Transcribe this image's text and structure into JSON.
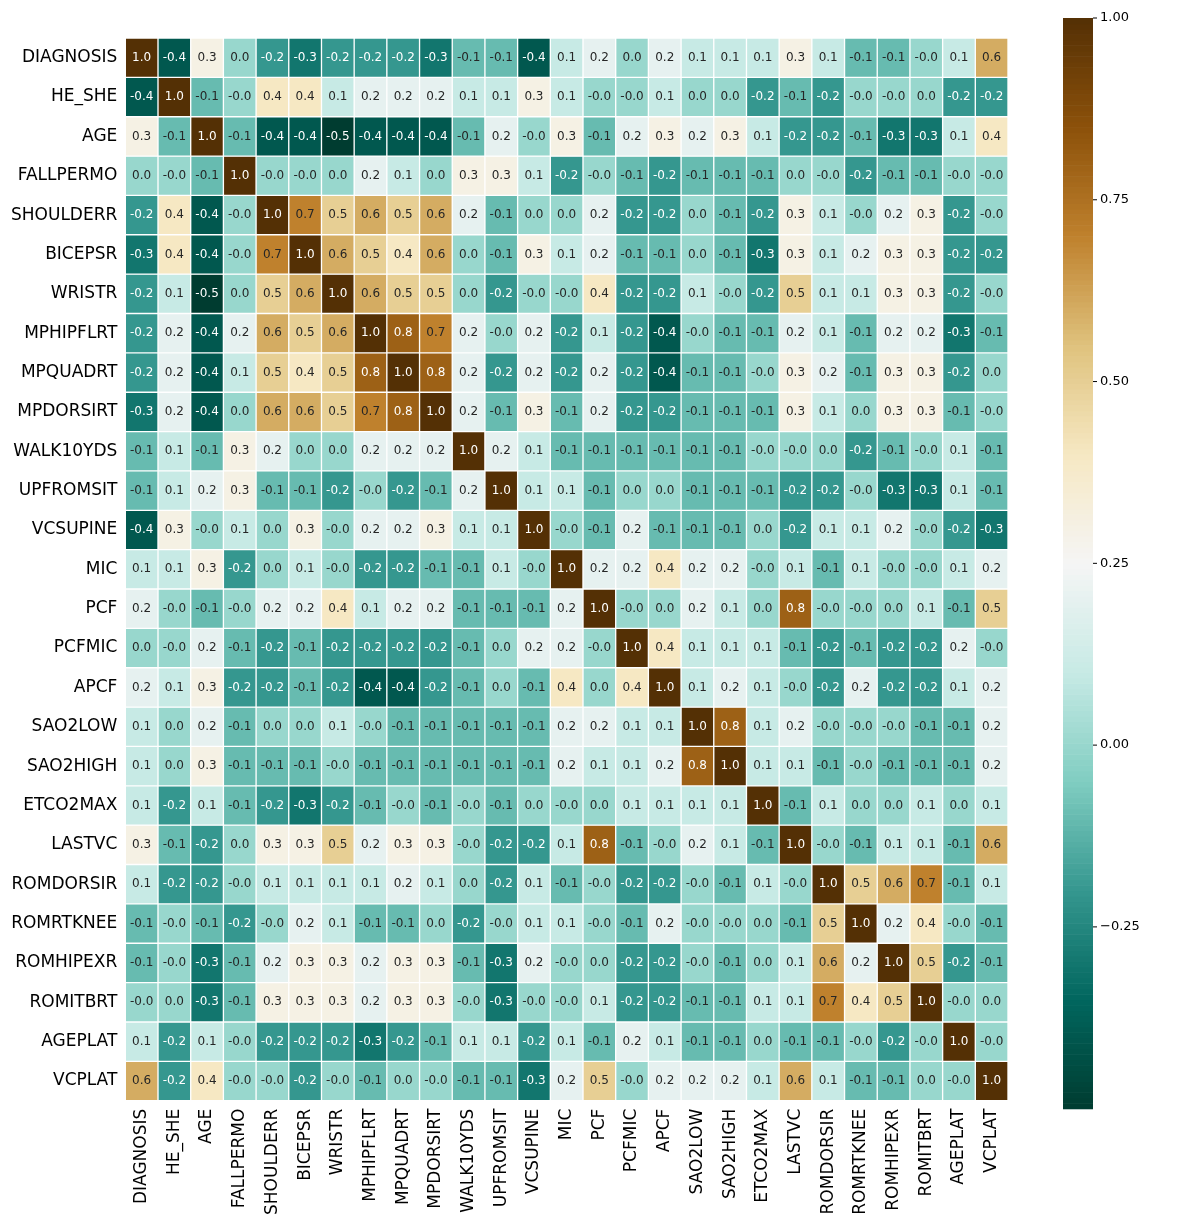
{
  "chart_data": {
    "type": "heatmap",
    "categories": [
      "DIAGNOSIS",
      "HE_SHE",
      "AGE",
      "FALLPERMO",
      "SHOULDERR",
      "BICEPSR",
      "WRISTR",
      "MPHIPFLRT",
      "MPQUADRT",
      "MPDORSIRT",
      "WALK10YDS",
      "UPFROMSIT",
      "VCSUPINE",
      "MIC",
      "PCF",
      "PCFMIC",
      "APCF",
      "SAO2LOW",
      "SAO2HIGH",
      "ETCO2MAX",
      "LASTVC",
      "ROMDORSIR",
      "ROMRTKNEE",
      "ROMHIPEXR",
      "ROMITBRT",
      "AGEPLAT",
      "VCPLAT"
    ],
    "y_categories": [
      "DIAGNOSIS",
      "HE_SHE",
      "AGE",
      "FALLPERMO",
      "SHOULDERR",
      "BICEPSR",
      "WRISTR",
      "MPHIPFLRT",
      "MPQUADRT",
      "MPDORSIRT",
      "WALK10YDS",
      "UPFROMSIT",
      "VCSUPINE",
      "MIC",
      "PCF",
      "PCFMIC",
      "APCF",
      "SAO2LOW",
      "SAO2HIGH",
      "ETCO2MAX",
      "LASTVC",
      "ROMDORSIR",
      "ROMRTKNEE",
      "ROMHIPEXR",
      "ROMITBRT",
      "AGEPLAT",
      "VCPLAT"
    ],
    "cells": [
      [
        1.0,
        -0.4,
        0.3,
        0.0,
        -0.2,
        -0.3,
        -0.2,
        -0.2,
        -0.2,
        -0.3,
        -0.1,
        -0.1,
        -0.4,
        0.1,
        0.2,
        0.0,
        0.2,
        0.1,
        0.1,
        0.1,
        0.3,
        0.1,
        -0.1,
        -0.1,
        -0.0,
        0.1,
        0.6
      ],
      [
        -0.4,
        1.0,
        -0.1,
        -0.0,
        0.4,
        0.4,
        0.1,
        0.2,
        0.2,
        0.2,
        0.1,
        0.1,
        0.3,
        0.1,
        -0.0,
        -0.0,
        0.1,
        0.0,
        0.0,
        -0.2,
        -0.1,
        -0.2,
        -0.0,
        -0.0,
        0.0,
        -0.2,
        -0.2
      ],
      [
        0.3,
        -0.1,
        1.0,
        -0.1,
        -0.4,
        -0.4,
        -0.5,
        -0.4,
        -0.4,
        -0.4,
        -0.1,
        0.2,
        -0.0,
        0.3,
        -0.1,
        0.2,
        0.3,
        0.2,
        0.3,
        0.1,
        -0.2,
        -0.2,
        -0.1,
        -0.3,
        -0.3,
        0.1,
        0.4
      ],
      [
        0.0,
        -0.0,
        -0.1,
        1.0,
        -0.0,
        -0.0,
        0.0,
        0.2,
        0.1,
        0.0,
        0.3,
        0.3,
        0.1,
        -0.2,
        -0.0,
        -0.1,
        -0.2,
        -0.1,
        -0.1,
        -0.1,
        0.0,
        -0.0,
        -0.2,
        -0.1,
        -0.1,
        -0.0,
        -0.0
      ],
      [
        -0.2,
        0.4,
        -0.4,
        -0.0,
        1.0,
        0.7,
        0.5,
        0.6,
        0.5,
        0.6,
        0.2,
        -0.1,
        0.0,
        0.0,
        0.2,
        -0.2,
        -0.2,
        0.0,
        -0.1,
        -0.2,
        0.3,
        0.1,
        -0.0,
        0.2,
        0.3,
        -0.2,
        -0.0
      ],
      [
        -0.3,
        0.4,
        -0.4,
        -0.0,
        0.7,
        1.0,
        0.6,
        0.5,
        0.4,
        0.6,
        0.0,
        -0.1,
        0.3,
        0.1,
        0.2,
        -0.1,
        -0.1,
        0.0,
        -0.1,
        -0.3,
        0.3,
        0.1,
        0.2,
        0.3,
        0.3,
        -0.2,
        -0.2
      ],
      [
        -0.2,
        0.1,
        -0.5,
        0.0,
        0.5,
        0.6,
        1.0,
        0.6,
        0.5,
        0.5,
        0.0,
        -0.2,
        -0.0,
        -0.0,
        0.4,
        -0.2,
        -0.2,
        0.1,
        -0.0,
        -0.2,
        0.5,
        0.1,
        0.1,
        0.3,
        0.3,
        -0.2,
        -0.0
      ],
      [
        -0.2,
        0.2,
        -0.4,
        0.2,
        0.6,
        0.5,
        0.6,
        1.0,
        0.8,
        0.7,
        0.2,
        -0.0,
        0.2,
        -0.2,
        0.1,
        -0.2,
        -0.4,
        -0.0,
        -0.1,
        -0.1,
        0.2,
        0.1,
        -0.1,
        0.2,
        0.2,
        -0.3,
        -0.1
      ],
      [
        -0.2,
        0.2,
        -0.4,
        0.1,
        0.5,
        0.4,
        0.5,
        0.8,
        1.0,
        0.8,
        0.2,
        -0.2,
        0.2,
        -0.2,
        0.2,
        -0.2,
        -0.4,
        -0.1,
        -0.1,
        -0.0,
        0.3,
        0.2,
        -0.1,
        0.3,
        0.3,
        -0.2,
        0.0
      ],
      [
        -0.3,
        0.2,
        -0.4,
        0.0,
        0.6,
        0.6,
        0.5,
        0.7,
        0.8,
        1.0,
        0.2,
        -0.1,
        0.3,
        -0.1,
        0.2,
        -0.2,
        -0.2,
        -0.1,
        -0.1,
        -0.1,
        0.3,
        0.1,
        0.0,
        0.3,
        0.3,
        -0.1,
        -0.0
      ],
      [
        -0.1,
        0.1,
        -0.1,
        0.3,
        0.2,
        0.0,
        0.0,
        0.2,
        0.2,
        0.2,
        1.0,
        0.2,
        0.1,
        -0.1,
        -0.1,
        -0.1,
        -0.1,
        -0.1,
        -0.1,
        -0.0,
        -0.0,
        0.0,
        -0.2,
        -0.1,
        -0.0,
        0.1,
        -0.1
      ],
      [
        -0.1,
        0.1,
        0.2,
        0.3,
        -0.1,
        -0.1,
        -0.2,
        -0.0,
        -0.2,
        -0.1,
        0.2,
        1.0,
        0.1,
        0.1,
        -0.1,
        0.0,
        0.0,
        -0.1,
        -0.1,
        -0.1,
        -0.2,
        -0.2,
        -0.0,
        -0.3,
        -0.3,
        0.1,
        -0.1
      ],
      [
        -0.4,
        0.3,
        -0.0,
        0.1,
        0.0,
        0.3,
        -0.0,
        0.2,
        0.2,
        0.3,
        0.1,
        0.1,
        1.0,
        -0.0,
        -0.1,
        0.2,
        -0.1,
        -0.1,
        -0.1,
        0.0,
        -0.2,
        0.1,
        0.1,
        0.2,
        -0.0,
        -0.2,
        -0.3
      ],
      [
        0.1,
        0.1,
        0.3,
        -0.2,
        0.0,
        0.1,
        -0.0,
        -0.2,
        -0.2,
        -0.1,
        -0.1,
        0.1,
        -0.0,
        1.0,
        0.2,
        0.2,
        0.4,
        0.2,
        0.2,
        -0.0,
        0.1,
        -0.1,
        0.1,
        -0.0,
        -0.0,
        0.1,
        0.2
      ],
      [
        0.2,
        -0.0,
        -0.1,
        -0.0,
        0.2,
        0.2,
        0.4,
        0.1,
        0.2,
        0.2,
        -0.1,
        -0.1,
        -0.1,
        0.2,
        1.0,
        -0.0,
        0.0,
        0.2,
        0.1,
        0.0,
        0.8,
        -0.0,
        -0.0,
        0.0,
        0.1,
        -0.1,
        0.5
      ],
      [
        0.0,
        -0.0,
        0.2,
        -0.1,
        -0.2,
        -0.1,
        -0.2,
        -0.2,
        -0.2,
        -0.2,
        -0.1,
        0.0,
        0.2,
        0.2,
        -0.0,
        1.0,
        0.4,
        0.1,
        0.1,
        0.1,
        -0.1,
        -0.2,
        -0.1,
        -0.2,
        -0.2,
        0.2,
        -0.0
      ],
      [
        0.2,
        0.1,
        0.3,
        -0.2,
        -0.2,
        -0.1,
        -0.2,
        -0.4,
        -0.4,
        -0.2,
        -0.1,
        0.0,
        -0.1,
        0.4,
        0.0,
        0.4,
        1.0,
        0.1,
        0.2,
        0.1,
        -0.0,
        -0.2,
        0.2,
        -0.2,
        -0.2,
        0.1,
        0.2
      ],
      [
        0.1,
        0.0,
        0.2,
        -0.1,
        0.0,
        0.0,
        0.1,
        -0.0,
        -0.1,
        -0.1,
        -0.1,
        -0.1,
        -0.1,
        0.2,
        0.2,
        0.1,
        0.1,
        1.0,
        0.8,
        0.1,
        0.2,
        -0.0,
        -0.0,
        -0.0,
        -0.1,
        -0.1,
        0.2
      ],
      [
        0.1,
        0.0,
        0.3,
        -0.1,
        -0.1,
        -0.1,
        -0.0,
        -0.1,
        -0.1,
        -0.1,
        -0.1,
        -0.1,
        -0.1,
        0.2,
        0.1,
        0.1,
        0.2,
        0.8,
        1.0,
        0.1,
        0.1,
        -0.1,
        -0.0,
        -0.1,
        -0.1,
        -0.1,
        0.2
      ],
      [
        0.1,
        -0.2,
        0.1,
        -0.1,
        -0.2,
        -0.3,
        -0.2,
        -0.1,
        -0.0,
        -0.1,
        -0.0,
        -0.1,
        0.0,
        -0.0,
        0.0,
        0.1,
        0.1,
        0.1,
        0.1,
        1.0,
        -0.1,
        0.1,
        0.0,
        0.0,
        0.1,
        0.0,
        0.1
      ],
      [
        0.3,
        -0.1,
        -0.2,
        0.0,
        0.3,
        0.3,
        0.5,
        0.2,
        0.3,
        0.3,
        -0.0,
        -0.2,
        -0.2,
        0.1,
        0.8,
        -0.1,
        -0.0,
        0.2,
        0.1,
        -0.1,
        1.0,
        -0.0,
        -0.1,
        0.1,
        0.1,
        -0.1,
        0.6
      ],
      [
        0.1,
        -0.2,
        -0.2,
        -0.0,
        0.1,
        0.1,
        0.1,
        0.1,
        0.2,
        0.1,
        0.0,
        -0.2,
        0.1,
        -0.1,
        -0.0,
        -0.2,
        -0.2,
        -0.0,
        -0.1,
        0.1,
        -0.0,
        1.0,
        0.5,
        0.6,
        0.7,
        -0.1,
        0.1
      ],
      [
        -0.1,
        -0.0,
        -0.1,
        -0.2,
        -0.0,
        0.2,
        0.1,
        -0.1,
        -0.1,
        0.0,
        -0.2,
        -0.0,
        0.1,
        0.1,
        -0.0,
        -0.1,
        0.2,
        -0.0,
        -0.0,
        0.0,
        -0.1,
        0.5,
        1.0,
        0.2,
        0.4,
        -0.0,
        -0.1
      ],
      [
        -0.1,
        -0.0,
        -0.3,
        -0.1,
        0.2,
        0.3,
        0.3,
        0.2,
        0.3,
        0.3,
        -0.1,
        -0.3,
        0.2,
        -0.0,
        0.0,
        -0.2,
        -0.2,
        -0.0,
        -0.1,
        0.0,
        0.1,
        0.6,
        0.2,
        1.0,
        0.5,
        -0.2,
        -0.1
      ],
      [
        -0.0,
        0.0,
        -0.3,
        -0.1,
        0.3,
        0.3,
        0.3,
        0.2,
        0.3,
        0.3,
        -0.0,
        -0.3,
        -0.0,
        -0.0,
        0.1,
        -0.2,
        -0.2,
        -0.1,
        -0.1,
        0.1,
        0.1,
        0.7,
        0.4,
        0.5,
        1.0,
        -0.0,
        0.0
      ],
      [
        0.1,
        -0.2,
        0.1,
        -0.0,
        -0.2,
        -0.2,
        -0.2,
        -0.3,
        -0.2,
        -0.1,
        0.1,
        0.1,
        -0.2,
        0.1,
        -0.1,
        0.2,
        0.1,
        -0.1,
        -0.1,
        0.0,
        -0.1,
        -0.1,
        -0.0,
        -0.2,
        -0.0,
        1.0,
        -0.0
      ],
      [
        0.6,
        -0.2,
        0.4,
        -0.0,
        -0.0,
        -0.2,
        -0.0,
        -0.1,
        0.0,
        -0.0,
        -0.1,
        -0.1,
        -0.3,
        0.2,
        0.5,
        -0.0,
        0.2,
        0.2,
        0.2,
        0.1,
        0.6,
        0.1,
        -0.1,
        -0.1,
        0.0,
        -0.0,
        1.0
      ]
    ],
    "clim": [
      -0.5,
      1.0
    ],
    "cticks": [
      {
        "value": -0.25,
        "label": "−0.25"
      },
      {
        "value": 0,
        "label": "0.00"
      },
      {
        "value": 0.25,
        "label": "0.25"
      },
      {
        "value": 0.5,
        "label": "0.50"
      },
      {
        "value": 0.75,
        "label": "0.75"
      },
      {
        "value": 1.0,
        "label": "1.00"
      }
    ],
    "cell_labels": [
      [
        "1.0",
        "-0.4",
        "0.3",
        "0.0",
        "-0.2",
        "-0.3",
        "-0.2",
        "-0.2",
        "-0.2",
        "-0.3",
        "-0.1",
        "-0.1",
        "-0.4",
        "0.1",
        "0.2",
        "0.0",
        "0.2",
        "0.1",
        "0.1",
        "0.1",
        "0.3",
        "0.1",
        "-0.1",
        "-0.1",
        "-0.0",
        "0.1",
        "0.6"
      ],
      [
        "-0.4",
        "1.0",
        "-0.1",
        "-0.0",
        "0.4",
        "0.4",
        "0.1",
        "0.2",
        "0.2",
        "0.2",
        "0.1",
        "0.1",
        "0.3",
        "0.1",
        "-0.0",
        "-0.0",
        "0.1",
        "0.0",
        "0.0",
        "-0.2",
        "-0.1",
        "-0.2",
        "-0.0",
        "-0.0",
        "0.0",
        "-0.2",
        "-0.2"
      ],
      [
        "0.3",
        "-0.1",
        "1.0",
        "-0.1",
        "-0.4",
        "-0.4",
        "-0.5",
        "-0.4",
        "-0.4",
        "-0.4",
        "-0.1",
        "0.2",
        "-0.0",
        "0.3",
        "-0.1",
        "0.2",
        "0.3",
        "0.2",
        "0.3",
        "0.1",
        "-0.2",
        "-0.2",
        "-0.1",
        "-0.3",
        "-0.3",
        "0.1",
        "0.4"
      ],
      [
        "0.0",
        "-0.0",
        "-0.1",
        "1.0",
        "-0.0",
        "-0.0",
        "0.0",
        "0.2",
        "0.1",
        "0.0",
        "0.3",
        "0.3",
        "0.1",
        "-0.2",
        "-0.0",
        "-0.1",
        "-0.2",
        "-0.1",
        "-0.1",
        "-0.1",
        "0.0",
        "-0.0",
        "-0.2",
        "-0.1",
        "-0.1",
        "-0.0",
        "-0.0"
      ],
      [
        "-0.2",
        "0.4",
        "-0.4",
        "-0.0",
        "1.0",
        "0.7",
        "0.5",
        "0.6",
        "0.5",
        "0.6",
        "0.2",
        "-0.1",
        "0.0",
        "0.0",
        "0.2",
        "-0.2",
        "-0.2",
        "0.0",
        "-0.1",
        "-0.2",
        "0.3",
        "0.1",
        "-0.0",
        "0.2",
        "0.3",
        "-0.2",
        "-0.0"
      ],
      [
        "-0.3",
        "0.4",
        "-0.4",
        "-0.0",
        "0.7",
        "1.0",
        "0.6",
        "0.5",
        "0.4",
        "0.6",
        "0.0",
        "-0.1",
        "0.3",
        "0.1",
        "0.2",
        "-0.1",
        "-0.1",
        "0.0",
        "-0.1",
        "-0.3",
        "0.3",
        "0.1",
        "0.2",
        "0.3",
        "0.3",
        "-0.2",
        "-0.2"
      ],
      [
        "-0.2",
        "0.1",
        "-0.5",
        "0.0",
        "0.5",
        "0.6",
        "1.0",
        "0.6",
        "0.5",
        "0.5",
        "0.0",
        "-0.2",
        "-0.0",
        "-0.0",
        "0.4",
        "-0.2",
        "-0.2",
        "0.1",
        "-0.0",
        "-0.2",
        "0.5",
        "0.1",
        "0.1",
        "0.3",
        "0.3",
        "-0.2",
        "-0.0"
      ],
      [
        "-0.2",
        "0.2",
        "-0.4",
        "0.2",
        "0.6",
        "0.5",
        "0.6",
        "1.0",
        "0.8",
        "0.7",
        "0.2",
        "-0.0",
        "0.2",
        "-0.2",
        "0.1",
        "-0.2",
        "-0.4",
        "-0.0",
        "-0.1",
        "-0.1",
        "0.2",
        "0.1",
        "-0.1",
        "0.2",
        "0.2",
        "-0.3",
        "-0.1"
      ],
      [
        "-0.2",
        "0.2",
        "-0.4",
        "0.1",
        "0.5",
        "0.4",
        "0.5",
        "0.8",
        "1.0",
        "0.8",
        "0.2",
        "-0.2",
        "0.2",
        "-0.2",
        "0.2",
        "-0.2",
        "-0.4",
        "-0.1",
        "-0.1",
        "-0.0",
        "0.3",
        "0.2",
        "-0.1",
        "0.3",
        "0.3",
        "-0.2",
        "0.0"
      ],
      [
        "-0.3",
        "0.2",
        "-0.4",
        "0.0",
        "0.6",
        "0.6",
        "0.5",
        "0.7",
        "0.8",
        "1.0",
        "0.2",
        "-0.1",
        "0.3",
        "-0.1",
        "0.2",
        "-0.2",
        "-0.2",
        "-0.1",
        "-0.1",
        "-0.1",
        "0.3",
        "0.1",
        "0.0",
        "0.3",
        "0.3",
        "-0.1",
        "-0.0"
      ],
      [
        "-0.1",
        "0.1",
        "-0.1",
        "0.3",
        "0.2",
        "0.0",
        "0.0",
        "0.2",
        "0.2",
        "0.2",
        "1.0",
        "0.2",
        "0.1",
        "-0.1",
        "-0.1",
        "-0.1",
        "-0.1",
        "-0.1",
        "-0.1",
        "-0.0",
        "-0.0",
        "0.0",
        "-0.2",
        "-0.1",
        "-0.0",
        "0.1",
        "-0.1"
      ],
      [
        "-0.1",
        "0.1",
        "0.2",
        "0.3",
        "-0.1",
        "-0.1",
        "-0.2",
        "-0.0",
        "-0.2",
        "-0.1",
        "0.2",
        "1.0",
        "0.1",
        "0.1",
        "-0.1",
        "0.0",
        "0.0",
        "-0.1",
        "-0.1",
        "-0.1",
        "-0.2",
        "-0.2",
        "-0.0",
        "-0.3",
        "-0.3",
        "0.1",
        "-0.1"
      ],
      [
        "-0.4",
        "0.3",
        "-0.0",
        "0.1",
        "0.0",
        "0.3",
        "-0.0",
        "0.2",
        "0.2",
        "0.3",
        "0.1",
        "0.1",
        "1.0",
        "-0.0",
        "-0.1",
        "0.2",
        "-0.1",
        "-0.1",
        "-0.1",
        "0.0",
        "-0.2",
        "0.1",
        "0.1",
        "0.2",
        "-0.0",
        "-0.2",
        "-0.3"
      ],
      [
        "0.1",
        "0.1",
        "0.3",
        "-0.2",
        "0.0",
        "0.1",
        "-0.0",
        "-0.2",
        "-0.2",
        "-0.1",
        "-0.1",
        "0.1",
        "-0.0",
        "1.0",
        "0.2",
        "0.2",
        "0.4",
        "0.2",
        "0.2",
        "-0.0",
        "0.1",
        "-0.1",
        "0.1",
        "-0.0",
        "-0.0",
        "0.1",
        "0.2"
      ],
      [
        "0.2",
        "-0.0",
        "-0.1",
        "-0.0",
        "0.2",
        "0.2",
        "0.4",
        "0.1",
        "0.2",
        "0.2",
        "-0.1",
        "-0.1",
        "-0.1",
        "0.2",
        "1.0",
        "-0.0",
        "0.0",
        "0.2",
        "0.1",
        "0.0",
        "0.8",
        "-0.0",
        "-0.0",
        "0.0",
        "0.1",
        "-0.1",
        "0.5"
      ],
      [
        "0.0",
        "-0.0",
        "0.2",
        "-0.1",
        "-0.2",
        "-0.1",
        "-0.2",
        "-0.2",
        "-0.2",
        "-0.2",
        "-0.1",
        "0.0",
        "0.2",
        "0.2",
        "-0.0",
        "1.0",
        "0.4",
        "0.1",
        "0.1",
        "0.1",
        "-0.1",
        "-0.2",
        "-0.1",
        "-0.2",
        "-0.2",
        "0.2",
        "-0.0"
      ],
      [
        "0.2",
        "0.1",
        "0.3",
        "-0.2",
        "-0.2",
        "-0.1",
        "-0.2",
        "-0.4",
        "-0.4",
        "-0.2",
        "-0.1",
        "0.0",
        "-0.1",
        "0.4",
        "0.0",
        "0.4",
        "1.0",
        "0.1",
        "0.2",
        "0.1",
        "-0.0",
        "-0.2",
        "0.2",
        "-0.2",
        "-0.2",
        "0.1",
        "0.2"
      ],
      [
        "0.1",
        "0.0",
        "0.2",
        "-0.1",
        "0.0",
        "0.0",
        "0.1",
        "-0.0",
        "-0.1",
        "-0.1",
        "-0.1",
        "-0.1",
        "-0.1",
        "0.2",
        "0.2",
        "0.1",
        "0.1",
        "1.0",
        "0.8",
        "0.1",
        "0.2",
        "-0.0",
        "-0.0",
        "-0.0",
        "-0.1",
        "-0.1",
        "0.2"
      ],
      [
        "0.1",
        "0.0",
        "0.3",
        "-0.1",
        "-0.1",
        "-0.1",
        "-0.0",
        "-0.1",
        "-0.1",
        "-0.1",
        "-0.1",
        "-0.1",
        "-0.1",
        "0.2",
        "0.1",
        "0.1",
        "0.2",
        "0.8",
        "1.0",
        "0.1",
        "0.1",
        "-0.1",
        "-0.0",
        "-0.1",
        "-0.1",
        "-0.1",
        "0.2"
      ],
      [
        "0.1",
        "-0.2",
        "0.1",
        "-0.1",
        "-0.2",
        "-0.3",
        "-0.2",
        "-0.1",
        "-0.0",
        "-0.1",
        "-0.0",
        "-0.1",
        "0.0",
        "-0.0",
        "0.0",
        "0.1",
        "0.1",
        "0.1",
        "0.1",
        "1.0",
        "-0.1",
        "0.1",
        "0.0",
        "0.0",
        "0.1",
        "0.0",
        "0.1"
      ],
      [
        "0.3",
        "-0.1",
        "-0.2",
        "0.0",
        "0.3",
        "0.3",
        "0.5",
        "0.2",
        "0.3",
        "0.3",
        "-0.0",
        "-0.2",
        "-0.2",
        "0.1",
        "0.8",
        "-0.1",
        "-0.0",
        "0.2",
        "0.1",
        "-0.1",
        "1.0",
        "-0.0",
        "-0.1",
        "0.1",
        "0.1",
        "-0.1",
        "0.6"
      ],
      [
        "0.1",
        "-0.2",
        "-0.2",
        "-0.0",
        "0.1",
        "0.1",
        "0.1",
        "0.1",
        "0.2",
        "0.1",
        "0.0",
        "-0.2",
        "0.1",
        "-0.1",
        "-0.0",
        "-0.2",
        "-0.2",
        "-0.0",
        "-0.1",
        "0.1",
        "-0.0",
        "1.0",
        "0.5",
        "0.6",
        "0.7",
        "-0.1",
        "0.1"
      ],
      [
        "-0.1",
        "-0.0",
        "-0.1",
        "-0.2",
        "-0.0",
        "0.2",
        "0.1",
        "-0.1",
        "-0.1",
        "0.0",
        "-0.2",
        "-0.0",
        "0.1",
        "0.1",
        "-0.0",
        "-0.1",
        "0.2",
        "-0.0",
        "-0.0",
        "0.0",
        "-0.1",
        "0.5",
        "1.0",
        "0.2",
        "0.4",
        "-0.0",
        "-0.1"
      ],
      [
        "-0.1",
        "-0.0",
        "-0.3",
        "-0.1",
        "0.2",
        "0.3",
        "0.3",
        "0.2",
        "0.3",
        "0.3",
        "-0.1",
        "-0.3",
        "0.2",
        "-0.0",
        "0.0",
        "-0.2",
        "-0.2",
        "-0.0",
        "-0.1",
        "0.0",
        "0.1",
        "0.6",
        "0.2",
        "1.0",
        "0.5",
        "-0.2",
        "-0.1"
      ],
      [
        "-0.0",
        "0.0",
        "-0.3",
        "-0.1",
        "0.3",
        "0.3",
        "0.3",
        "0.2",
        "0.3",
        "0.3",
        "-0.0",
        "-0.3",
        "-0.0",
        "-0.0",
        "0.1",
        "-0.2",
        "-0.2",
        "-0.1",
        "-0.1",
        "0.1",
        "0.1",
        "0.7",
        "0.4",
        "0.5",
        "1.0",
        "-0.0",
        "0.0"
      ],
      [
        "0.1",
        "-0.2",
        "0.1",
        "-0.0",
        "-0.2",
        "-0.2",
        "-0.2",
        "-0.3",
        "-0.2",
        "-0.1",
        "0.1",
        "0.1",
        "-0.2",
        "0.1",
        "-0.1",
        "0.2",
        "0.1",
        "-0.1",
        "-0.1",
        "0.0",
        "-0.1",
        "-0.1",
        "-0.0",
        "-0.2",
        "-0.0",
        "1.0",
        "-0.0"
      ],
      [
        "0.6",
        "-0.2",
        "0.4",
        "-0.0",
        "-0.0",
        "-0.2",
        "-0.0",
        "-0.1",
        "0.0",
        "-0.0",
        "-0.1",
        "-0.1",
        "-0.3",
        "0.2",
        "0.5",
        "-0.0",
        "0.2",
        "0.2",
        "0.2",
        "0.1",
        "0.6",
        "0.1",
        "-0.1",
        "-0.1",
        "0.0",
        "-0.0",
        "1.0"
      ]
    ]
  }
}
